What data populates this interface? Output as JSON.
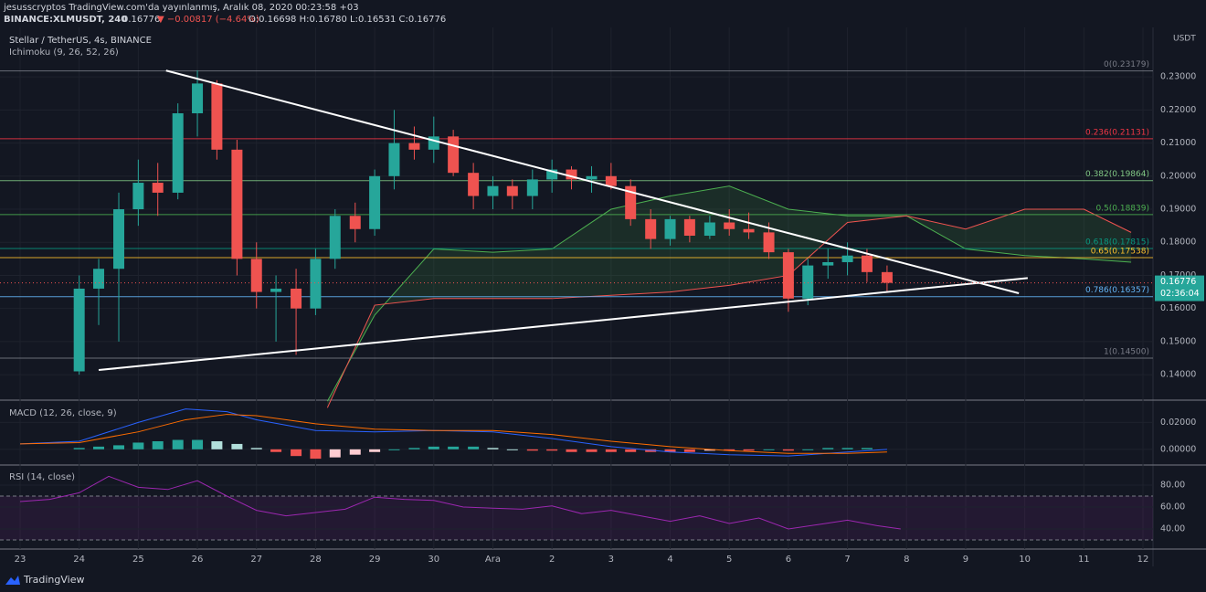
{
  "header": {
    "line1": "jesusscryptos TradingView.com'da yayınlanmış, Aralık 08, 2020 00:23:58 +03",
    "symbol": "BINANCE:XLMUSDT, 240",
    "price": "0.16776",
    "change": "▼ −0.00817 (−4.64%)",
    "ohlc": "O:0.16698 H:0.16780 L:0.16531 C:0.16776"
  },
  "footer": "TradingView",
  "chart_data": [
    {
      "type": "candlestick",
      "title": "Stellar / TetherUS, 4s, BINANCE",
      "subtitle": "Ichimoku (9, 26, 52, 26)",
      "unit": "USDT",
      "xlim": [
        -0.34,
        19.17
      ],
      "xticks": [
        {
          "value": 0,
          "label": "23"
        },
        {
          "value": 1,
          "label": "24"
        },
        {
          "value": 2,
          "label": "25"
        },
        {
          "value": 3,
          "label": "26"
        },
        {
          "value": 4,
          "label": "27"
        },
        {
          "value": 5,
          "label": "28"
        },
        {
          "value": 6,
          "label": "29"
        },
        {
          "value": 7,
          "label": "30"
        },
        {
          "value": 8,
          "label": "Ara"
        },
        {
          "value": 9,
          "label": "2"
        },
        {
          "value": 10,
          "label": "3"
        },
        {
          "value": 11,
          "label": "4"
        },
        {
          "value": 12,
          "label": "5"
        },
        {
          "value": 13,
          "label": "6"
        },
        {
          "value": 14,
          "label": "7"
        },
        {
          "value": 15,
          "label": "8"
        },
        {
          "value": 16,
          "label": "9"
        },
        {
          "value": 17,
          "label": "10"
        },
        {
          "value": 18,
          "label": "11"
        },
        {
          "value": 19,
          "label": "12"
        }
      ],
      "ylim": [
        0.1323,
        0.2444
      ],
      "yticks": [
        {
          "value": 0.14,
          "label": "0.14000"
        },
        {
          "value": 0.15,
          "label": "0.15000"
        },
        {
          "value": 0.16,
          "label": "0.16000"
        },
        {
          "value": 0.17,
          "label": "0.17000"
        },
        {
          "value": 0.18,
          "label": "0.18000"
        },
        {
          "value": 0.19,
          "label": "0.19000"
        },
        {
          "value": 0.2,
          "label": "0.20000"
        },
        {
          "value": 0.21,
          "label": "0.21000"
        },
        {
          "value": 0.22,
          "label": "0.22000"
        },
        {
          "value": 0.23,
          "label": "0.23000"
        }
      ],
      "up_color": "#26a69a",
      "down_color": "#ef5350",
      "x": [
        1,
        1.33,
        1.67,
        2,
        2.33,
        2.67,
        3,
        3.33,
        3.67,
        4,
        4.33,
        4.67,
        5,
        5.33,
        5.67,
        6,
        6.33,
        6.67,
        7,
        7.33,
        7.67,
        8,
        8.33,
        8.67,
        9,
        9.33,
        9.67,
        10,
        10.33,
        10.67,
        11,
        11.33,
        11.67,
        12,
        12.33,
        12.67,
        13,
        13.33,
        13.67,
        14,
        14.33,
        14.67
      ],
      "open": [
        0.141,
        0.166,
        0.172,
        0.19,
        0.198,
        0.195,
        0.219,
        0.228,
        0.208,
        0.175,
        0.165,
        0.166,
        0.16,
        0.175,
        0.188,
        0.184,
        0.2,
        0.21,
        0.208,
        0.212,
        0.201,
        0.194,
        0.197,
        0.194,
        0.199,
        0.202,
        0.199,
        0.2,
        0.197,
        0.187,
        0.181,
        0.187,
        0.182,
        0.186,
        0.184,
        0.183,
        0.177,
        0.163,
        0.173,
        0.174,
        0.176,
        0.171
      ],
      "high": [
        0.17,
        0.175,
        0.195,
        0.205,
        0.204,
        0.222,
        0.232,
        0.229,
        0.211,
        0.18,
        0.17,
        0.172,
        0.178,
        0.19,
        0.192,
        0.202,
        0.22,
        0.215,
        0.218,
        0.214,
        0.204,
        0.2,
        0.199,
        0.202,
        0.205,
        0.203,
        0.203,
        0.204,
        0.199,
        0.19,
        0.188,
        0.188,
        0.188,
        0.19,
        0.189,
        0.186,
        0.178,
        0.175,
        0.178,
        0.18,
        0.178,
        0.173
      ],
      "low": [
        0.14,
        0.155,
        0.15,
        0.185,
        0.188,
        0.193,
        0.212,
        0.205,
        0.17,
        0.16,
        0.15,
        0.146,
        0.158,
        0.172,
        0.18,
        0.182,
        0.196,
        0.205,
        0.204,
        0.2,
        0.19,
        0.19,
        0.19,
        0.19,
        0.195,
        0.196,
        0.195,
        0.196,
        0.185,
        0.178,
        0.179,
        0.18,
        0.181,
        0.182,
        0.181,
        0.175,
        0.159,
        0.161,
        0.169,
        0.17,
        0.168,
        0.165
      ],
      "close": [
        0.166,
        0.172,
        0.19,
        0.198,
        0.195,
        0.219,
        0.228,
        0.208,
        0.175,
        0.165,
        0.166,
        0.16,
        0.175,
        0.188,
        0.184,
        0.2,
        0.21,
        0.208,
        0.212,
        0.201,
        0.194,
        0.197,
        0.194,
        0.199,
        0.202,
        0.199,
        0.2,
        0.197,
        0.187,
        0.181,
        0.187,
        0.182,
        0.186,
        0.184,
        0.183,
        0.177,
        0.163,
        0.173,
        0.174,
        0.176,
        0.171,
        0.16776
      ],
      "price_tag": "0.16776",
      "countdown": "02:36:04",
      "cloud": {
        "x": [
          5.2,
          6,
          7,
          8,
          9,
          10,
          11,
          12,
          13,
          14,
          15,
          16,
          17,
          18,
          18.8
        ],
        "span_a": [
          0.132,
          0.158,
          0.178,
          0.177,
          0.178,
          0.19,
          0.194,
          0.197,
          0.19,
          0.188,
          0.188,
          0.178,
          0.176,
          0.175,
          0.174
        ],
        "span_b": [
          0.13,
          0.161,
          0.163,
          0.163,
          0.163,
          0.164,
          0.165,
          0.167,
          0.17,
          0.186,
          0.188,
          0.184,
          0.19,
          0.19,
          0.183
        ],
        "a_color": "#4caf50",
        "b_color": "#ef5350"
      },
      "fib_levels": [
        {
          "label": "0(0.23179)",
          "value": 0.23179,
          "color": "#787b86"
        },
        {
          "label": "0.236(0.21131)",
          "value": 0.21131,
          "color": "#f23645"
        },
        {
          "label": "0.382(0.19864)",
          "value": 0.19864,
          "color": "#81c784"
        },
        {
          "label": "0.5(0.18839)",
          "value": 0.18839,
          "color": "#4caf50"
        },
        {
          "label": "0.618(0.17815)",
          "value": 0.17815,
          "color": "#089981"
        },
        {
          "label": "0.65(0.17538)",
          "value": 0.17538,
          "color": "#fbc02d"
        },
        {
          "label": "0.786(0.16357)",
          "value": 0.16357,
          "color": "#64b5f6"
        },
        {
          "label": "1(0.14500)",
          "value": 0.145,
          "color": "#787b86"
        }
      ],
      "trendlines": [
        {
          "x": [
            2.47,
            16.9
          ],
          "y": [
            0.2319,
            0.1646
          ]
        },
        {
          "x": [
            1.33,
            17.05
          ],
          "y": [
            0.1414,
            0.1692
          ]
        }
      ]
    },
    {
      "type": "macd",
      "title": "MACD (12, 26, close, 9)",
      "ylim": [
        -0.011,
        0.0359
      ],
      "yticks": [
        {
          "value": 0,
          "label": "0.00000"
        },
        {
          "value": 0.02,
          "label": "0.02000"
        }
      ],
      "hist_x": [
        1,
        1.33,
        1.67,
        2,
        2.33,
        2.67,
        3,
        3.33,
        3.67,
        4,
        4.33,
        4.67,
        5,
        5.33,
        5.67,
        6,
        6.33,
        6.67,
        7,
        7.33,
        7.67,
        8,
        8.33,
        8.67,
        9,
        9.33,
        9.67,
        10,
        10.33,
        10.67,
        11,
        11.33,
        11.67,
        12,
        12.33,
        12.67,
        13,
        13.33,
        13.67,
        14,
        14.33
      ],
      "histogram": [
        0.001,
        0.002,
        0.003,
        0.005,
        0.006,
        0.007,
        0.007,
        0.006,
        0.004,
        0.001,
        -0.002,
        -0.005,
        -0.007,
        -0.006,
        -0.004,
        -0.002,
        0,
        0.001,
        0.002,
        0.002,
        0.002,
        0.001,
        0,
        -0.001,
        -0.001,
        -0.002,
        -0.002,
        -0.002,
        -0.002,
        -0.002,
        -0.002,
        -0.002,
        -0.001,
        -0.001,
        -0.001,
        0,
        -0.001,
        0,
        0.001,
        0.001,
        0.001
      ],
      "x": [
        0,
        1,
        2,
        2.8,
        3.5,
        4,
        5,
        6,
        7,
        8,
        9,
        10,
        11,
        12,
        13,
        14,
        14.67
      ],
      "series": [
        {
          "color": "#2962ff",
          "values": [
            0.004,
            0.006,
            0.02,
            0.03,
            0.028,
            0.022,
            0.014,
            0.013,
            0.014,
            0.013,
            0.008,
            0.002,
            -0.002,
            -0.004,
            -0.005,
            -0.002,
            0
          ]
        },
        {
          "color": "#ff6d00",
          "values": [
            0.004,
            0.005,
            0.013,
            0.022,
            0.026,
            0.025,
            0.019,
            0.015,
            0.014,
            0.014,
            0.011,
            0.006,
            0.002,
            -0.001,
            -0.003,
            -0.003,
            -0.002
          ]
        }
      ]
    },
    {
      "type": "rsi",
      "title": "RSI (14, close)",
      "ylim": [
        22.5,
        97.5
      ],
      "yticks": [
        {
          "value": 40,
          "label": "40.00"
        },
        {
          "value": 60,
          "label": "60.00"
        },
        {
          "value": 80,
          "label": "80.00"
        }
      ],
      "bands": [
        30,
        70
      ],
      "color": "#9c27b0",
      "x": [
        0,
        0.5,
        1,
        1.5,
        2,
        2.5,
        3,
        3.5,
        4,
        4.5,
        5,
        5.5,
        6,
        6.5,
        7,
        7.5,
        8,
        8.5,
        9,
        9.5,
        10,
        10.5,
        11,
        11.5,
        12,
        12.5,
        13,
        13.5,
        14,
        14.5,
        14.9
      ],
      "values": [
        65,
        67,
        73,
        88,
        78,
        76,
        84,
        70,
        57,
        52,
        55,
        58,
        69,
        67,
        66,
        60,
        59,
        58,
        61,
        54,
        57,
        52,
        47,
        52,
        45,
        50,
        40,
        44,
        48,
        43,
        40
      ]
    }
  ]
}
